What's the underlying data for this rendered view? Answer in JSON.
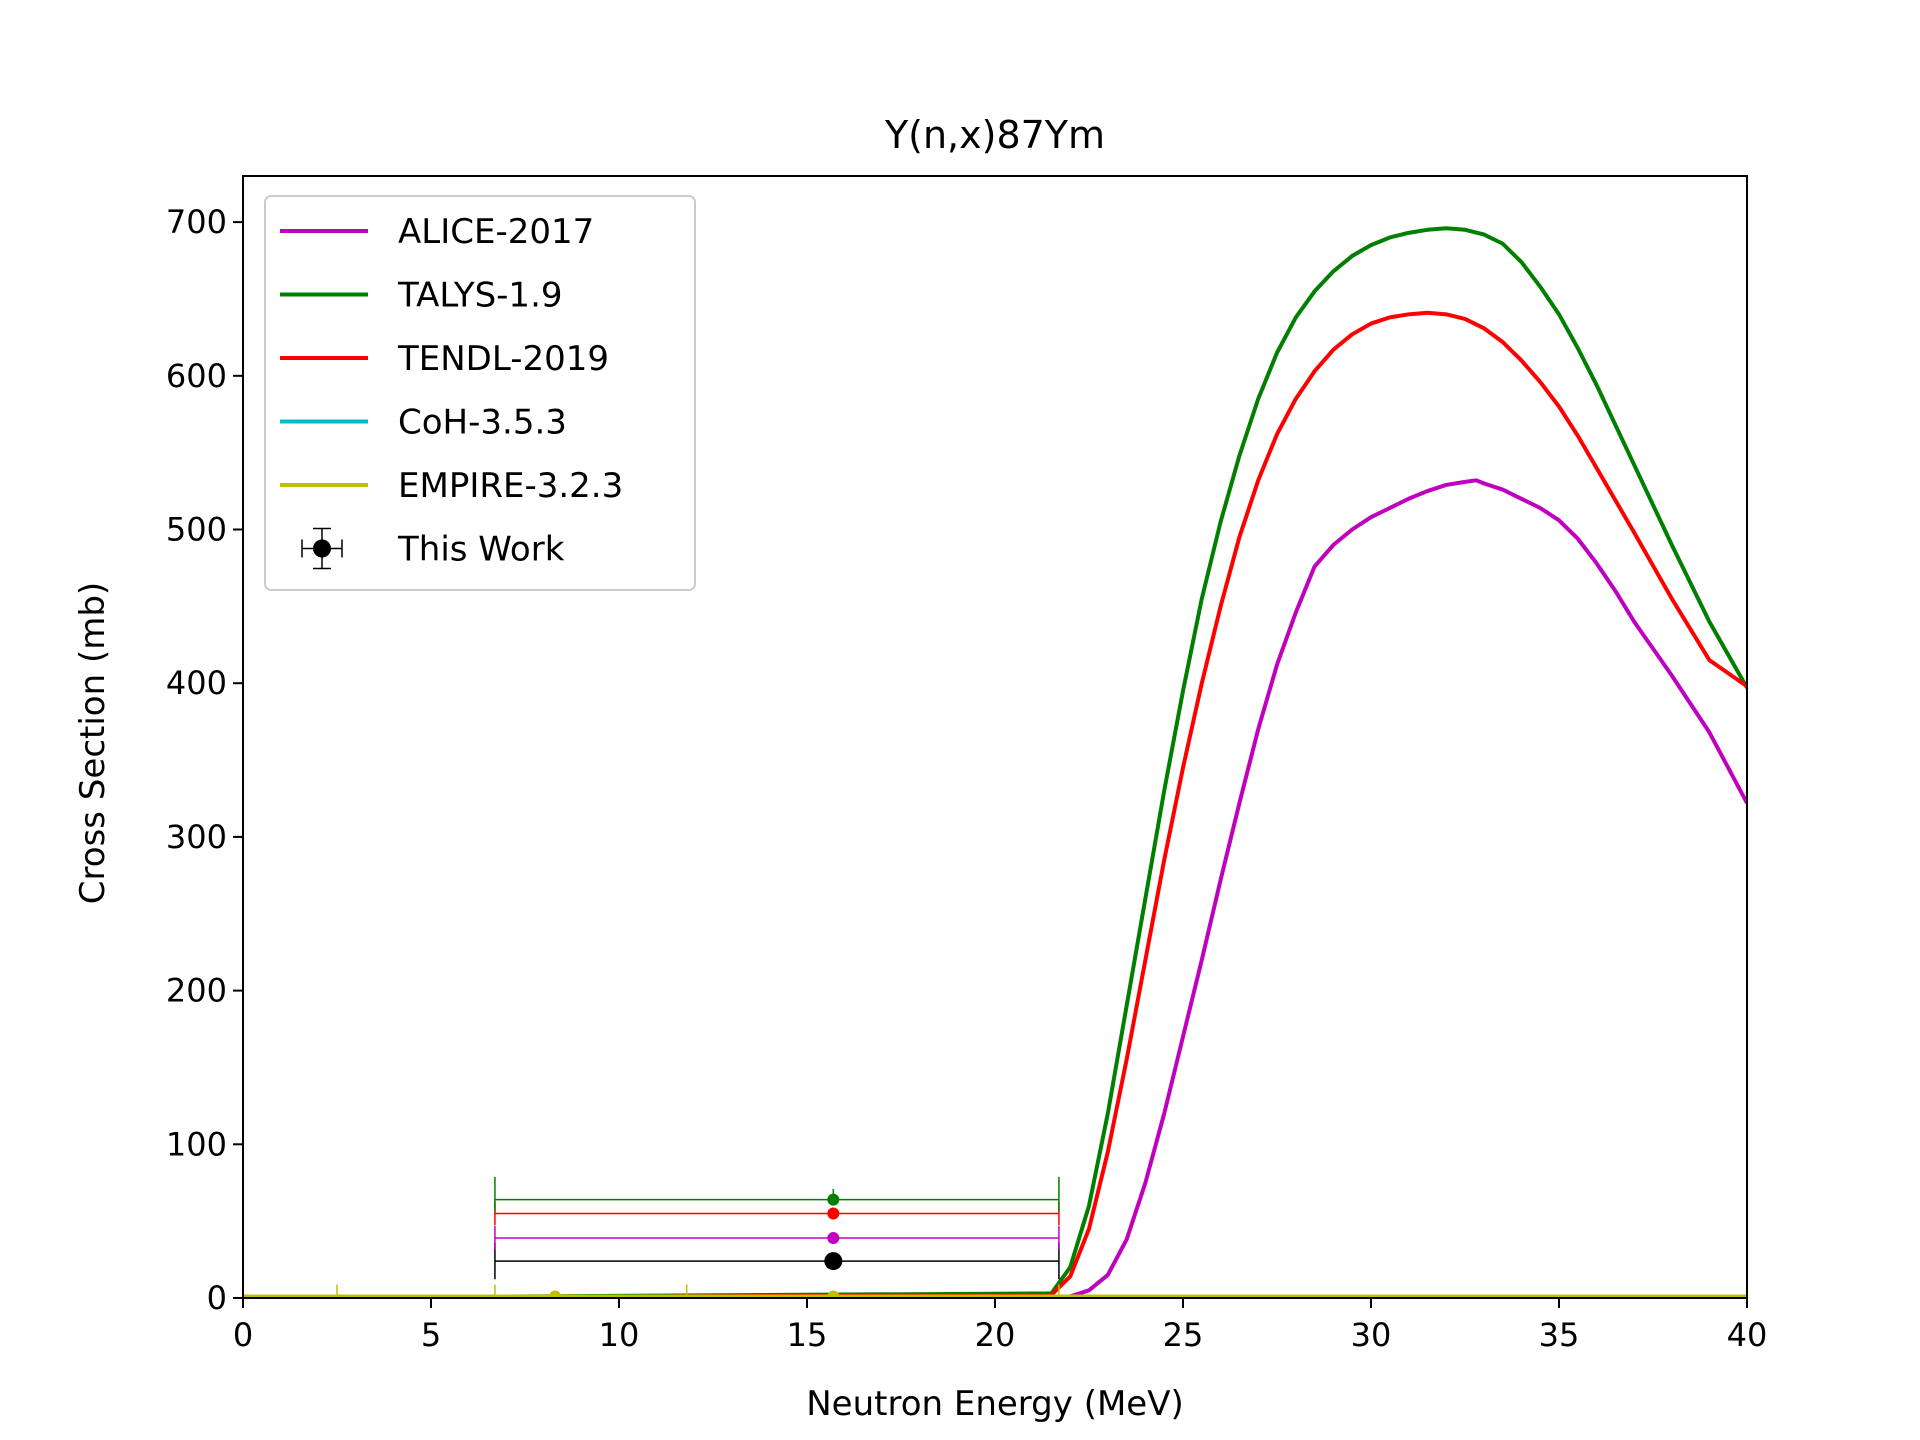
{
  "chart_data": {
    "type": "line",
    "title": "Y(n,x)87Ym",
    "xlabel": "Neutron Energy (MeV)",
    "ylabel": "Cross Section (mb)",
    "xlim": [
      0,
      40
    ],
    "ylim": [
      0,
      730
    ],
    "xticks": [
      0,
      5,
      10,
      15,
      20,
      25,
      30,
      35,
      40
    ],
    "yticks": [
      0,
      100,
      200,
      300,
      400,
      500,
      600,
      700
    ],
    "xtick_labels": [
      "0",
      "5",
      "10",
      "15",
      "20",
      "25",
      "30",
      "35",
      "40"
    ],
    "ytick_labels": [
      "0",
      "100",
      "200",
      "300",
      "400",
      "500",
      "600",
      "700"
    ],
    "grid": false,
    "legend_position": "upper-left",
    "series": [
      {
        "name": "ALICE-2017",
        "color": "#bf00bf",
        "x": [
          0,
          21,
          22,
          22.5,
          23,
          23.5,
          24,
          24.5,
          25,
          25.5,
          26,
          26.5,
          27,
          27.5,
          28,
          28.5,
          29,
          29.5,
          30,
          30.5,
          31,
          31.5,
          32,
          32.5,
          32.8,
          33,
          33.5,
          34,
          34.5,
          35,
          35.5,
          36,
          36.5,
          37,
          38,
          39,
          40
        ],
        "y": [
          0,
          0,
          1,
          5,
          15,
          38,
          75,
          120,
          170,
          220,
          272,
          322,
          370,
          412,
          446,
          476,
          490,
          500,
          508,
          514,
          520,
          525,
          529,
          531,
          532,
          530,
          526,
          520,
          514,
          506,
          494,
          478,
          460,
          440,
          405,
          368,
          322
        ]
      },
      {
        "name": "TALYS-1.9",
        "color": "#007f00",
        "x": [
          0,
          21.5,
          22,
          22.5,
          23,
          23.5,
          24,
          24.5,
          25,
          25.5,
          26,
          26.5,
          27,
          27.5,
          28,
          28.5,
          29,
          29.5,
          30,
          30.5,
          31,
          31.5,
          32,
          32.5,
          33,
          33.5,
          34,
          34.5,
          35,
          35.5,
          36,
          37,
          38,
          39,
          40
        ],
        "y": [
          0,
          3,
          20,
          60,
          120,
          190,
          260,
          330,
          395,
          455,
          505,
          548,
          585,
          615,
          638,
          655,
          668,
          678,
          685,
          690,
          693,
          695,
          696,
          695,
          692,
          686,
          674,
          658,
          640,
          618,
          594,
          542,
          490,
          440,
          397
        ]
      },
      {
        "name": "TENDL-2019",
        "color": "#ff0000",
        "x": [
          0,
          21.5,
          22,
          22.5,
          23,
          23.5,
          24,
          24.5,
          25,
          25.5,
          26,
          26.5,
          27,
          27.5,
          28,
          28.5,
          29,
          29.5,
          30,
          30.5,
          31,
          31.5,
          32,
          32.5,
          33,
          33.5,
          34,
          34.5,
          35,
          35.5,
          36,
          37,
          38,
          39,
          40
        ],
        "y": [
          0,
          2,
          14,
          45,
          95,
          155,
          220,
          285,
          345,
          400,
          450,
          495,
          532,
          562,
          585,
          603,
          617,
          627,
          634,
          638,
          640,
          641,
          640,
          637,
          631,
          622,
          610,
          596,
          580,
          561,
          540,
          498,
          455,
          415,
          398
        ]
      },
      {
        "name": "CoH-3.5.3",
        "color": "#00bfbf",
        "x": [
          0,
          40
        ],
        "y": [
          0,
          0
        ]
      },
      {
        "name": "EMPIRE-3.2.3",
        "color": "#bfbf00",
        "x": [
          0,
          40
        ],
        "y": [
          1,
          1
        ]
      }
    ],
    "measurements": [
      {
        "name": "This Work",
        "color": "#000000",
        "x": 15.7,
        "y": 24,
        "xerr": [
          6.7,
          21.7
        ],
        "yerr": [
          20,
          28
        ],
        "legend": true,
        "marker_size": 9
      },
      {
        "name": "",
        "color": "#bf00bf",
        "x": 15.7,
        "y": 39,
        "xerr": [
          6.7,
          21.7
        ],
        "yerr": [
          39,
          39
        ],
        "legend": false,
        "marker_size": 6
      },
      {
        "name": "",
        "color": "#ff0000",
        "x": 15.7,
        "y": 55,
        "xerr": [
          6.7,
          21.7
        ],
        "yerr": [
          55,
          55
        ],
        "legend": false,
        "marker_size": 6
      },
      {
        "name": "",
        "color": "#007f00",
        "x": 15.7,
        "y": 64,
        "xerr": [
          6.7,
          21.7
        ],
        "yerr": [
          64,
          71
        ],
        "legend": false,
        "marker_size": 6
      },
      {
        "name": "",
        "color": "#bfbf00",
        "x": 8.3,
        "y": 1,
        "xerr": [
          2.5,
          11.8
        ],
        "yerr": [
          1,
          1
        ],
        "legend": false,
        "marker_size": 6
      },
      {
        "name": "",
        "color": "#bfbf00",
        "x": 15.7,
        "y": 1,
        "xerr": [
          6.7,
          21.7
        ],
        "yerr": [
          1,
          1
        ],
        "legend": false,
        "marker_size": 6
      }
    ]
  }
}
